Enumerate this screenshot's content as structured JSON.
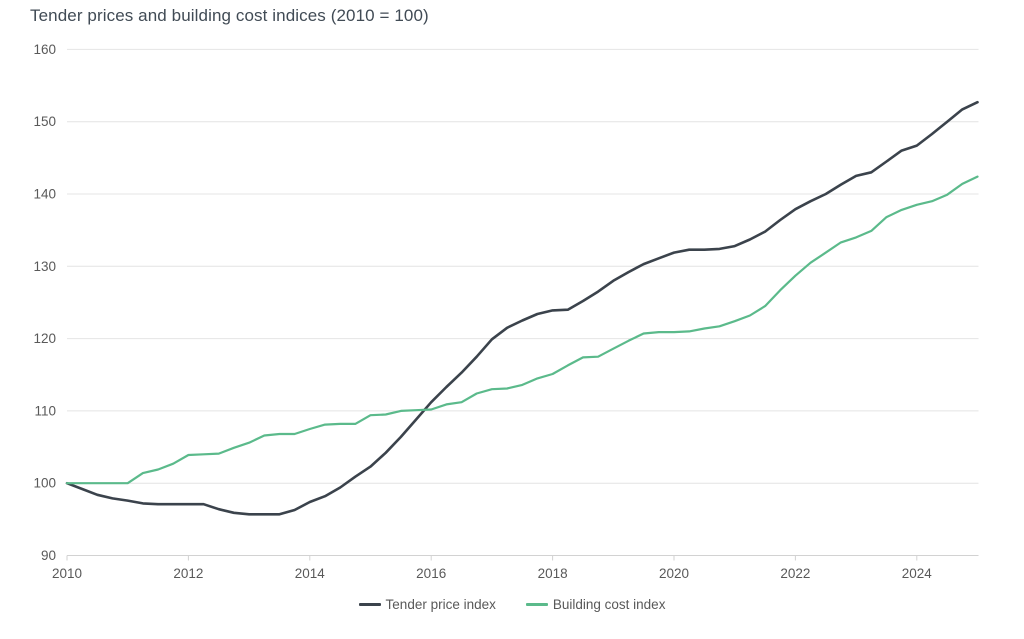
{
  "page": {
    "background": "#ffffff"
  },
  "chart_data": {
    "type": "line",
    "title": "Tender prices and building cost indices (2010 = 100)",
    "x_start": 2010,
    "x_step": 0.25,
    "x_ticks": [
      2010,
      2012,
      2014,
      2016,
      2018,
      2020,
      2022,
      2024
    ],
    "y_ticks": [
      90,
      100,
      110,
      120,
      130,
      140,
      150,
      160
    ],
    "xlim": [
      2010,
      2025
    ],
    "ylim": [
      90,
      160
    ],
    "grid": "horizontal",
    "legend_position": "bottom",
    "colors": {
      "grid": "#e4e4e4",
      "axis": "#d2d2d2",
      "tick_label": "#595959",
      "title": "#414b55",
      "background": "#ffffff"
    },
    "series": [
      {
        "id": "tender-price-index",
        "name": "Tender price index",
        "color": "#3b434c",
        "stroke_width": 2.6,
        "values": [
          100.0,
          99.2,
          98.4,
          97.9,
          97.6,
          97.2,
          97.1,
          97.1,
          97.1,
          97.1,
          96.4,
          95.9,
          95.7,
          95.7,
          95.7,
          96.3,
          97.4,
          98.2,
          99.4,
          100.9,
          102.3,
          104.2,
          106.4,
          108.8,
          111.2,
          113.3,
          115.3,
          117.5,
          119.9,
          121.5,
          122.5,
          123.4,
          123.9,
          124.0,
          125.2,
          126.5,
          128.0,
          129.2,
          130.3,
          131.1,
          131.9,
          132.3,
          132.3,
          132.4,
          132.8,
          133.7,
          134.8,
          136.4,
          137.9,
          139.0,
          140.0,
          141.3,
          142.5,
          143.0,
          144.5,
          146.0,
          146.7,
          148.3,
          150.0,
          151.7,
          152.7
        ]
      },
      {
        "id": "building-cost-index",
        "name": "Building cost index",
        "color": "#5bba8b",
        "stroke_width": 2.2,
        "values": [
          100.0,
          100.0,
          100.0,
          100.0,
          100.0,
          101.4,
          101.9,
          102.7,
          103.9,
          104.0,
          104.1,
          104.9,
          105.6,
          106.6,
          106.8,
          106.8,
          107.5,
          108.1,
          108.2,
          108.2,
          109.4,
          109.5,
          110.0,
          110.1,
          110.2,
          110.9,
          111.2,
          112.4,
          113.0,
          113.1,
          113.6,
          114.5,
          115.1,
          116.3,
          117.4,
          117.5,
          118.6,
          119.7,
          120.7,
          120.9,
          120.9,
          121.0,
          121.4,
          121.7,
          122.4,
          123.2,
          124.5,
          126.7,
          128.7,
          130.5,
          131.9,
          133.3,
          134.0,
          134.9,
          136.8,
          137.8,
          138.5,
          139.0,
          139.9,
          141.4,
          142.4
        ]
      }
    ]
  }
}
